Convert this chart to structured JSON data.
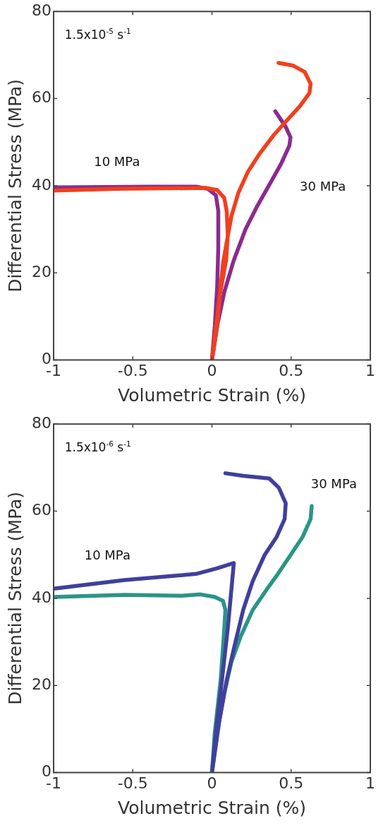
{
  "chart_data": [
    {
      "type": "line",
      "xlabel": "Volumetric Strain (%)",
      "ylabel": "Differential Stress (MPa)",
      "xlim": [
        -1,
        1
      ],
      "ylim": [
        0,
        80
      ],
      "xticks": [
        -1,
        -0.5,
        0,
        0.5,
        1
      ],
      "yticks": [
        0,
        20,
        40,
        60,
        80
      ],
      "marker": "none",
      "line_style": "solid",
      "annotations": [
        "1.5x10$^{-5}$ s$^{-1}$",
        "10 MPa",
        "30 MPa"
      ],
      "series": [
        {
          "color": "#f0401e",
          "x": [
            0.42,
            0.51,
            0.586,
            0.623,
            0.616,
            0.556,
            0.466,
            0.392,
            0.302,
            0.227,
            0.167,
            0.123,
            0.093,
            0.07,
            0.055,
            0.033,
            0,
            0.05,
            0.09,
            0.1,
            0.093,
            0.078,
            0.033,
            -0.04,
            -0.3,
            -0.6,
            -1
          ],
          "values": [
            68.2,
            67.6,
            66.1,
            63.4,
            61.3,
            58.3,
            54.7,
            51.7,
            47.4,
            43.2,
            38.4,
            33,
            27,
            22.2,
            16.8,
            7.8,
            0,
            15,
            23,
            28.8,
            34.2,
            37.2,
            39,
            39.5,
            39.4,
            39.3,
            38.9
          ]
        },
        {
          "color": "#8b2b8f",
          "x": [
            0.4,
            0.466,
            0.496,
            0.489,
            0.436,
            0.362,
            0.287,
            0.212,
            0.137,
            0.078,
            0.033,
            0,
            0.018,
            0.033,
            0.04,
            0.04,
            0.025,
            -0.027,
            -0.1,
            -0.4,
            -0.7,
            -1
          ],
          "values": [
            57.1,
            53.5,
            51.1,
            49.2,
            45,
            40.2,
            35.4,
            30,
            22.8,
            15.6,
            7.8,
            0,
            7.8,
            16.8,
            25.8,
            34.2,
            37.8,
            39.3,
            39.8,
            39.8,
            39.7,
            39.6
          ]
        }
      ]
    },
    {
      "type": "line",
      "xlabel": "Volumetric Strain (%)",
      "ylabel": "Differential Stress (MPa)",
      "xlim": [
        -1,
        1
      ],
      "ylim": [
        0,
        80
      ],
      "xticks": [
        -1,
        -0.5,
        0,
        0.5,
        1
      ],
      "yticks": [
        0,
        20,
        40,
        60,
        80
      ],
      "marker": "none",
      "line_style": "solid",
      "annotations": [
        "1.5x10$^{-6}$ s$^{-1}$",
        "10 MPa",
        "30 MPa"
      ],
      "series": [
        {
          "color": "#40409c",
          "x": [
            0.085,
            0.197,
            0.362,
            0.422,
            0.466,
            0.459,
            0.407,
            0.332,
            0.257,
            0.197,
            0.138,
            0.093,
            0.048,
            0,
            0.025,
            0.063,
            0.1,
            0.123,
            0.138,
            0.033,
            -0.1,
            -0.55,
            -1
          ],
          "values": [
            68.7,
            68.1,
            67.5,
            65.4,
            61.8,
            58.2,
            54,
            49.9,
            43.9,
            37.3,
            28.4,
            21.2,
            12.2,
            0,
            9.3,
            21.2,
            33.1,
            42.1,
            48.1,
            46.9,
            45.6,
            44.2,
            42.2
          ]
        },
        {
          "color": "#2a9587",
          "x": [
            0.63,
            0.623,
            0.571,
            0.496,
            0.407,
            0.347,
            0.257,
            0.182,
            0.123,
            0.078,
            0.033,
            0,
            0.018,
            0.055,
            0.078,
            0.085,
            0.07,
            0.018,
            -0.072,
            -0.19,
            -0.55,
            -1
          ],
          "values": [
            61.2,
            58.2,
            54,
            49.9,
            45.1,
            42.1,
            37.3,
            31.3,
            25.4,
            18.2,
            9.3,
            0,
            9.3,
            21.2,
            33.1,
            37.3,
            39.4,
            40.3,
            40.9,
            40.6,
            40.8,
            40.3
          ]
        }
      ]
    }
  ]
}
